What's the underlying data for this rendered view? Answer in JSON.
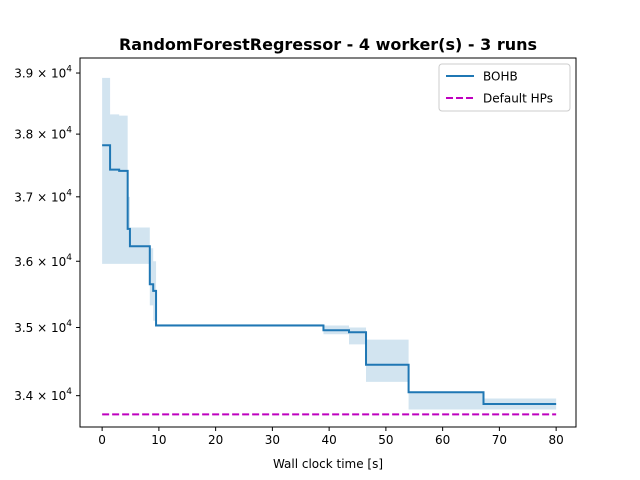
{
  "chart_data": {
    "type": "line",
    "title": "RandomForestRegressor - 4 worker(s) - 3 runs",
    "xlabel": "Wall clock time [s]",
    "ylabel": "",
    "xlim": [
      -3.9,
      83.5
    ],
    "ylim": [
      33550,
      39250
    ],
    "y_scale": "log",
    "grid": false,
    "legend_position": "top-right",
    "x_ticks": [
      0,
      10,
      20,
      30,
      40,
      50,
      60,
      70,
      80
    ],
    "x_tick_labels": [
      "0",
      "10",
      "20",
      "30",
      "40",
      "50",
      "60",
      "70",
      "80"
    ],
    "y_ticks": [
      34000,
      35000,
      36000,
      37000,
      38000,
      39000
    ],
    "y_tick_labels": [
      {
        "mantissa": "3.4",
        "times": "×",
        "base": "10",
        "exp": "4"
      },
      {
        "mantissa": "3.5",
        "times": "×",
        "base": "10",
        "exp": "4"
      },
      {
        "mantissa": "3.6",
        "times": "×",
        "base": "10",
        "exp": "4"
      },
      {
        "mantissa": "3.7",
        "times": "×",
        "base": "10",
        "exp": "4"
      },
      {
        "mantissa": "3.8",
        "times": "×",
        "base": "10",
        "exp": "4"
      },
      {
        "mantissa": "3.9",
        "times": "×",
        "base": "10",
        "exp": "4"
      }
    ],
    "series": [
      {
        "name": "BOHB",
        "style": "solid",
        "color": "#1f77b4",
        "band_color": "#1f77b4",
        "steps": [
          {
            "x": 0.0,
            "y": 37820,
            "lo": 35960,
            "hi": 38920
          },
          {
            "x": 1.4,
            "y": 37430,
            "lo": 35960,
            "hi": 38320
          },
          {
            "x": 3.0,
            "y": 37410,
            "lo": 35960,
            "hi": 38300
          },
          {
            "x": 4.5,
            "y": 36500,
            "lo": 35960,
            "hi": 37000
          },
          {
            "x": 4.9,
            "y": 36230,
            "lo": 35960,
            "hi": 36520
          },
          {
            "x": 8.4,
            "y": 35650,
            "lo": 35330,
            "hi": 36200
          },
          {
            "x": 9.0,
            "y": 35550,
            "lo": 35100,
            "hi": 36000
          },
          {
            "x": 9.5,
            "y": 35030,
            "lo": 35030,
            "hi": 35050
          },
          {
            "x": 39.0,
            "y": 34960,
            "lo": 34900,
            "hi": 35030
          },
          {
            "x": 43.5,
            "y": 34930,
            "lo": 34750,
            "hi": 35000
          },
          {
            "x": 46.5,
            "y": 34450,
            "lo": 34200,
            "hi": 34820
          },
          {
            "x": 54.0,
            "y": 34050,
            "lo": 33800,
            "hi": 34050
          },
          {
            "x": 67.2,
            "y": 33880,
            "lo": 33800,
            "hi": 33960
          }
        ],
        "x_end": 80.0
      },
      {
        "name": "Default HPs",
        "style": "dashed",
        "color": "#bf00bf",
        "x": [
          0,
          80
        ],
        "y": [
          33730,
          33730
        ]
      }
    ]
  }
}
